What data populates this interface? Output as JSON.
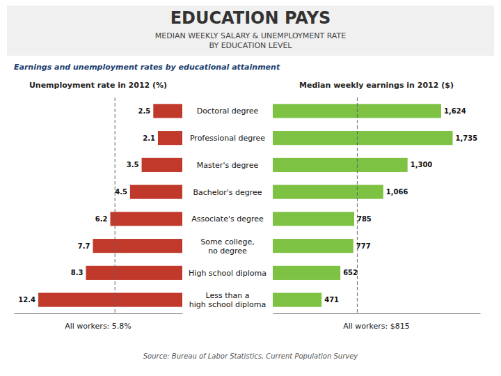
{
  "chart_data": [
    {
      "type": "bar",
      "orientation": "horizontal",
      "title": "EDUCATION PAYS",
      "subtitle": "MEDIAN WEEKLY SALARY & UNEMPLOYMENT RATE\nBY EDUCATION LEVEL",
      "annotations": [
        "Earnings and unemployment rates by educational attainment",
        "Source: Bureau of Labor Statistics, Current Population Survey"
      ],
      "xlabel": "Unemployment rate in 2012 (%)",
      "categories": [
        "Doctoral degree",
        "Professional degree",
        "Master's degree",
        "Bachelor's degree",
        "Associate's degree",
        "Some college,\nno degree",
        "High school diploma",
        "Less than a\nhigh school diploma"
      ],
      "values": [
        2.5,
        2.1,
        3.5,
        4.5,
        6.2,
        7.7,
        8.3,
        12.4
      ],
      "color": "#c0392b",
      "xlim": [
        14.5,
        0
      ],
      "reference_line": 5.8,
      "reference_label": "All workers: 5.8%",
      "data_labels": true,
      "tick_labels": false
    },
    {
      "type": "bar",
      "orientation": "horizontal",
      "xlabel": "Median weekly earnings in 2012 ($)",
      "values": [
        1624,
        1735,
        1300,
        1066,
        785,
        777,
        652,
        471
      ],
      "value_labels": [
        "1,624",
        "1,735",
        "1,300",
        "1,066",
        "785",
        "777",
        "652",
        "471"
      ],
      "color": "#7dc242",
      "xlim": [
        0,
        2000
      ],
      "reference_line": 815,
      "reference_label": "All workers: $815",
      "data_labels": true,
      "tick_labels": false
    }
  ]
}
